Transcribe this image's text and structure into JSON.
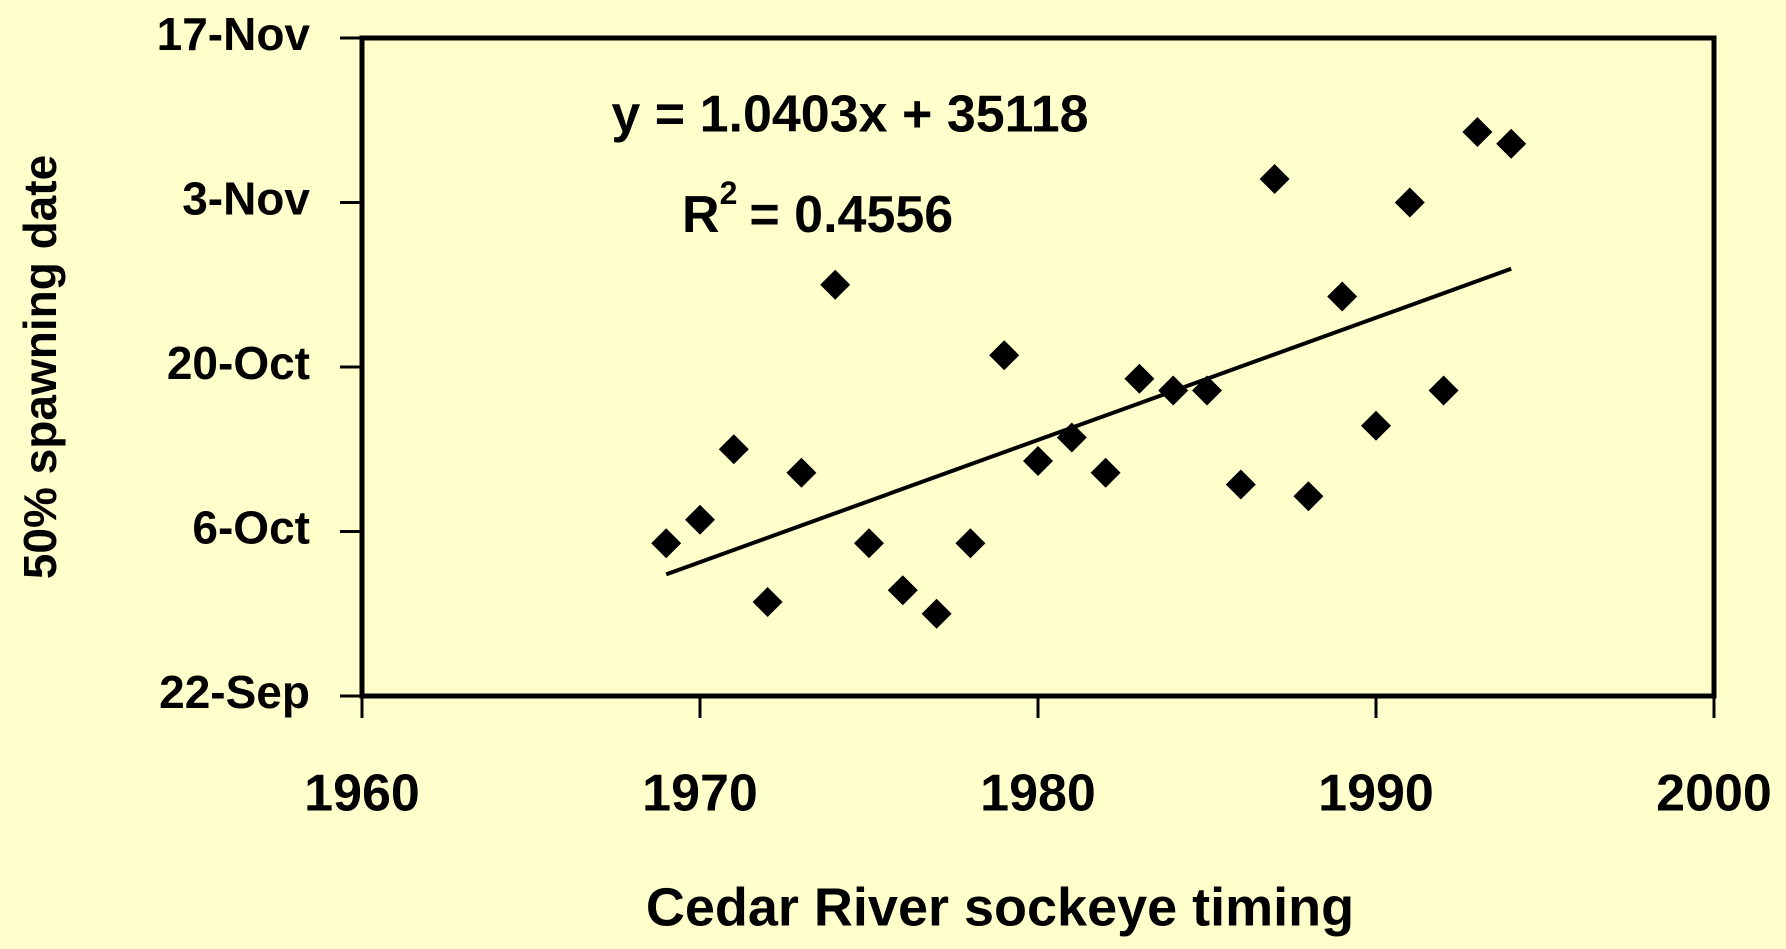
{
  "chart_data": {
    "type": "scatter",
    "xlabel": "Cedar River sockeye timing",
    "ylabel": "50% spawning date",
    "annotations": [
      "y = 1.0403x + 35118"
    ],
    "r_squared": {
      "base": "R",
      "sup": "2",
      "rest": "= 0.4556"
    },
    "x": [
      1969,
      1970,
      1971,
      1972,
      1973,
      1974,
      1975,
      1976,
      1977,
      1978,
      1979,
      1980,
      1981,
      1982,
      1983,
      1984,
      1985,
      1986,
      1987,
      1988,
      1989,
      1990,
      1991,
      1992,
      1993,
      1994
    ],
    "values": [
      37169,
      37171,
      37177,
      37164,
      37175,
      37191,
      37169,
      37165,
      37163,
      37169,
      37185,
      37176,
      37178,
      37175,
      37183,
      37182,
      37182,
      37174,
      37200,
      37173,
      37190,
      37179,
      37198,
      37182,
      37204,
      37203
    ],
    "color": "#000000",
    "trendline": {
      "x": [
        1969,
        1994
      ],
      "values": [
        37166.35,
        37192.36
      ]
    },
    "xlim": [
      1960,
      2000
    ],
    "xticks": [
      1960,
      1970,
      1980,
      1990,
      2000
    ],
    "ylim": [
      37156,
      37212
    ],
    "yticks": [
      {
        "value": 37156,
        "label": "22-Sep"
      },
      {
        "value": 37170,
        "label": "6-Oct"
      },
      {
        "value": 37184,
        "label": "20-Oct"
      },
      {
        "value": 37198,
        "label": "3-Nov"
      },
      {
        "value": 37212,
        "label": "17-Nov"
      }
    ]
  }
}
